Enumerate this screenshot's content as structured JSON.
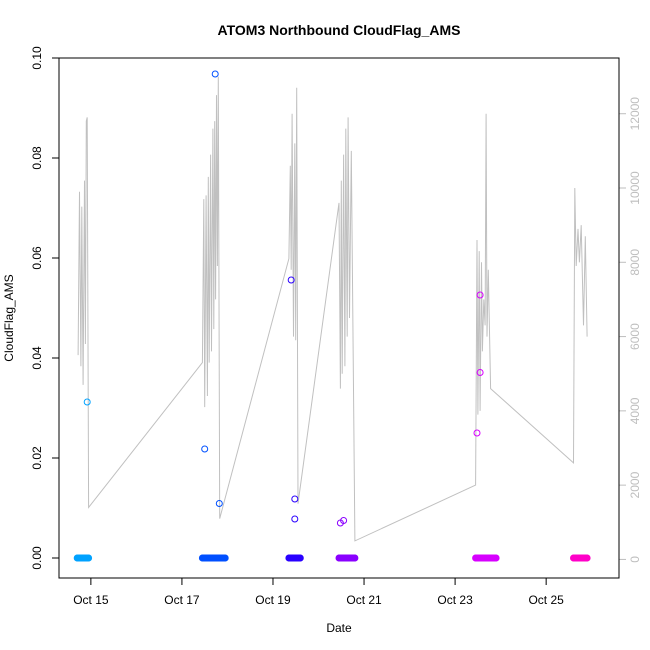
{
  "chart_data": {
    "type": "scatter",
    "title": "ATOM3 Northbound CloudFlag_AMS",
    "xlabel": "Date",
    "ylabel": "CloudFlag_AMS",
    "x_unit": "day of October 2016",
    "xlim": [
      14.3,
      26.6
    ],
    "ylim": [
      -0.004,
      0.1
    ],
    "x_ticks": [
      {
        "value": 15,
        "label": "Oct 15"
      },
      {
        "value": 17,
        "label": "Oct 17"
      },
      {
        "value": 19,
        "label": "Oct 19"
      },
      {
        "value": 21,
        "label": "Oct 21"
      },
      {
        "value": 23,
        "label": "Oct 23"
      },
      {
        "value": 25,
        "label": "Oct 25"
      }
    ],
    "y_ticks": [
      "0.00",
      "0.02",
      "0.04",
      "0.06",
      "0.08",
      "0.10"
    ],
    "y2_lim": [
      -500,
      13500
    ],
    "y2_ticks": [
      "0",
      "2000",
      "4000",
      "6000",
      "8000",
      "10000",
      "12000"
    ],
    "y2_color": "#bebebe",
    "grid": false,
    "legend": "none",
    "series": [
      {
        "color": "#00a2ff",
        "zero_span": [
          14.7,
          14.95
        ],
        "points": [
          [
            14.92,
            0.0312
          ]
        ]
      },
      {
        "color": "#0050ff",
        "zero_span": [
          17.45,
          17.95
        ],
        "points": [
          [
            17.5,
            0.0218
          ],
          [
            17.73,
            0.0968
          ],
          [
            17.82,
            0.0109
          ]
        ]
      },
      {
        "color": "#2a00ff",
        "zero_span": [
          19.35,
          19.6
        ],
        "points": [
          [
            19.4,
            0.0556
          ],
          [
            19.48,
            0.0118
          ],
          [
            19.48,
            0.0078
          ]
        ]
      },
      {
        "color": "#8a00ff",
        "zero_span": [
          20.45,
          20.8
        ],
        "points": [
          [
            20.48,
            0.007
          ],
          [
            20.55,
            0.0075
          ]
        ]
      },
      {
        "color": "#d700ff",
        "zero_span": [
          23.45,
          23.9
        ],
        "points": [
          [
            23.48,
            0.025
          ],
          [
            23.55,
            0.0526
          ],
          [
            23.55,
            0.0371
          ]
        ]
      },
      {
        "color": "#ff00c8",
        "zero_span": [
          25.6,
          25.9
        ],
        "points": []
      }
    ],
    "secondary_line": {
      "color": "#c0c0c0",
      "points": [
        [
          14.72,
          5500
        ],
        [
          14.75,
          9900
        ],
        [
          14.78,
          5200
        ],
        [
          14.8,
          9500
        ],
        [
          14.83,
          4700
        ],
        [
          14.86,
          10200
        ],
        [
          14.88,
          5800
        ],
        [
          14.9,
          11800
        ],
        [
          14.92,
          11900
        ],
        [
          14.95,
          1400
        ],
        [
          17.45,
          5300
        ],
        [
          17.48,
          9700
        ],
        [
          17.5,
          4100
        ],
        [
          17.53,
          9800
        ],
        [
          17.56,
          4400
        ],
        [
          17.58,
          10300
        ],
        [
          17.6,
          5300
        ],
        [
          17.63,
          10900
        ],
        [
          17.65,
          5600
        ],
        [
          17.68,
          11600
        ],
        [
          17.7,
          6200
        ],
        [
          17.72,
          11800
        ],
        [
          17.74,
          7000
        ],
        [
          17.76,
          12500
        ],
        [
          17.78,
          7900
        ],
        [
          17.8,
          13000
        ],
        [
          17.83,
          1100
        ],
        [
          19.35,
          8100
        ],
        [
          19.38,
          10600
        ],
        [
          19.4,
          7800
        ],
        [
          19.42,
          12000
        ],
        [
          19.45,
          6000
        ],
        [
          19.48,
          11200
        ],
        [
          19.5,
          5900
        ],
        [
          19.52,
          12700
        ],
        [
          19.55,
          1500
        ],
        [
          20.45,
          9600
        ],
        [
          20.48,
          4600
        ],
        [
          20.5,
          10200
        ],
        [
          20.52,
          5000
        ],
        [
          20.55,
          10900
        ],
        [
          20.58,
          5200
        ],
        [
          20.6,
          11600
        ],
        [
          20.63,
          6000
        ],
        [
          20.65,
          11900
        ],
        [
          20.68,
          6500
        ],
        [
          20.72,
          11000
        ],
        [
          20.8,
          500
        ],
        [
          23.45,
          2000
        ],
        [
          23.48,
          8600
        ],
        [
          23.5,
          3900
        ],
        [
          23.53,
          8300
        ],
        [
          23.55,
          4000
        ],
        [
          23.58,
          8000
        ],
        [
          23.6,
          5600
        ],
        [
          23.63,
          7000
        ],
        [
          23.66,
          6300
        ],
        [
          23.68,
          12000
        ],
        [
          23.7,
          6000
        ],
        [
          23.73,
          7800
        ],
        [
          23.78,
          4600
        ],
        [
          25.6,
          2600
        ],
        [
          25.63,
          10000
        ],
        [
          25.66,
          7900
        ],
        [
          25.7,
          8900
        ],
        [
          25.73,
          8000
        ],
        [
          25.77,
          9000
        ],
        [
          25.82,
          6300
        ],
        [
          25.86,
          8700
        ],
        [
          25.9,
          6000
        ]
      ]
    }
  }
}
